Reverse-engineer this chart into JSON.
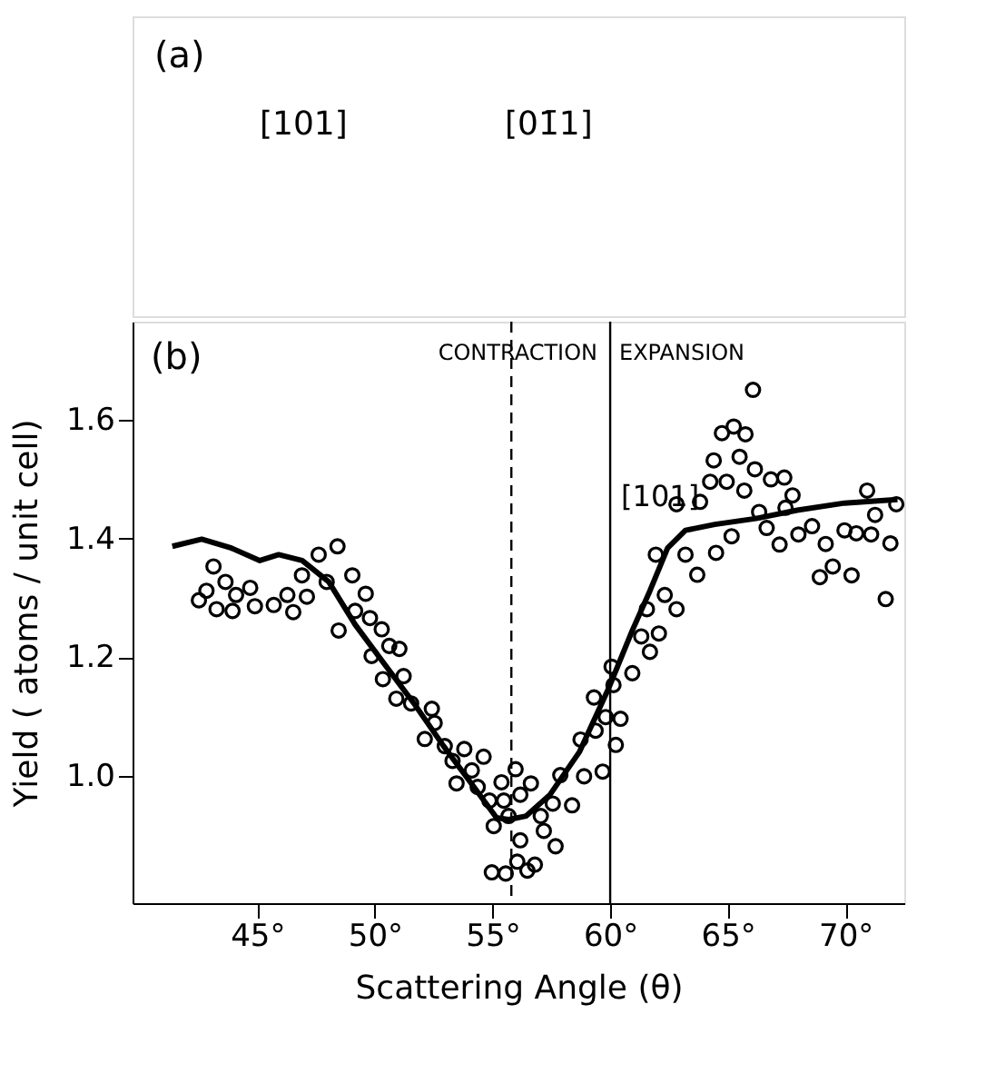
{
  "chart_data": {
    "type": "scatter",
    "xlabel": "Scattering Angle (θ)",
    "ylabel": "Yield ( atoms / unit cell)",
    "xlim": [
      39.7,
      72.5
    ],
    "ylim": [
      0.785,
      1.766
    ],
    "xticks": [
      {
        "value": 45,
        "label": "45°"
      },
      {
        "value": 50,
        "label": "50°"
      },
      {
        "value": 55,
        "label": "55°"
      },
      {
        "value": 60,
        "label": "60°"
      },
      {
        "value": 65,
        "label": "65°"
      },
      {
        "value": 70,
        "label": "70°"
      }
    ],
    "yticks": [
      {
        "value": 1.0,
        "label": "1.0"
      },
      1.2,
      1.4,
      1.6
    ],
    "grid": false,
    "ref_lines": [
      {
        "axis": "x",
        "value": 55.8,
        "line_style": "dashed",
        "color": "#000000"
      },
      {
        "axis": "x",
        "value": 60,
        "line_style": "solid",
        "color": "#000000"
      }
    ],
    "annotations": [
      "(a)",
      "[101]",
      "[01̄1]",
      "(b)",
      "CONTRACTION",
      "EXPANSION",
      {
        "text": "[101]",
        "x": 60,
        "y": 1.47
      }
    ],
    "series": [
      {
        "type": "scatter",
        "marker": "circle",
        "color": "#000000",
        "x": [
          42.52,
          42.84,
          43.14,
          43.27,
          43.65,
          43.95,
          44.1,
          44.7,
          44.9,
          45.7,
          46.28,
          46.53,
          46.9,
          47.11,
          47.61,
          47.95,
          48.41,
          48.46,
          49.04,
          49.16,
          49.61,
          49.79,
          49.86,
          50.29,
          50.34,
          50.61,
          50.91,
          51.04,
          51.22,
          51.54,
          52.12,
          52.42,
          52.54,
          52.97,
          53.3,
          53.47,
          53.8,
          54.12,
          54.37,
          54.62,
          54.87,
          55.05,
          54.97,
          55.38,
          55.48,
          55.56,
          55.98,
          56.05,
          56.18,
          55.68,
          56.18,
          56.48,
          56.63,
          56.8,
          57.05,
          57.18,
          57.56,
          57.68,
          57.88,
          58.38,
          58.74,
          58.89,
          59.31,
          59.38,
          59.68,
          59.81,
          60.06,
          60.14,
          60.24,
          60.44,
          60.94,
          61.32,
          61.56,
          61.69,
          62.07,
          61.94,
          62.32,
          62.82,
          62.82,
          63.2,
          63.7,
          63.82,
          64.4,
          64.25,
          64.5,
          64.75,
          64.95,
          65.16,
          65.25,
          65.5,
          65.7,
          65.75,
          66.07,
          66.15,
          66.33,
          66.65,
          66.83,
          67.2,
          67.4,
          67.45,
          67.75,
          68.0,
          68.58,
          68.91,
          69.16,
          69.46,
          69.96,
          70.26,
          70.46,
          70.92,
          71.09,
          71.26,
          71.71,
          71.91,
          72.16
        ],
        "values": [
          1.296,
          1.312,
          1.353,
          1.281,
          1.327,
          1.278,
          1.305,
          1.317,
          1.286,
          1.288,
          1.305,
          1.276,
          1.338,
          1.302,
          1.373,
          1.327,
          1.387,
          1.245,
          1.338,
          1.278,
          1.307,
          1.266,
          1.202,
          1.247,
          1.163,
          1.219,
          1.13,
          1.214,
          1.168,
          1.122,
          1.062,
          1.113,
          1.089,
          1.05,
          1.025,
          0.987,
          1.045,
          1.009,
          0.981,
          1.032,
          0.958,
          0.915,
          0.837,
          0.989,
          0.958,
          0.835,
          1.011,
          0.855,
          0.891,
          0.932,
          0.968,
          0.84,
          0.987,
          0.85,
          0.932,
          0.907,
          0.953,
          0.881,
          1.001,
          0.95,
          1.061,
          0.999,
          1.132,
          1.076,
          1.007,
          1.099,
          1.184,
          1.153,
          1.052,
          1.096,
          1.173,
          1.235,
          1.281,
          1.209,
          1.24,
          1.373,
          1.305,
          1.281,
          1.458,
          1.373,
          1.339,
          1.462,
          1.532,
          1.496,
          1.376,
          1.578,
          1.496,
          1.404,
          1.589,
          1.538,
          1.481,
          1.576,
          1.651,
          1.517,
          1.445,
          1.418,
          1.5,
          1.39,
          1.503,
          1.452,
          1.473,
          1.407,
          1.421,
          1.335,
          1.391,
          1.353,
          1.414,
          1.338,
          1.409,
          1.481,
          1.407,
          1.44,
          1.298,
          1.392,
          1.458
        ]
      },
      {
        "type": "line",
        "line_style": "solid",
        "color": "#000000",
        "x": [
          41.39,
          42.64,
          43.9,
          45.11,
          45.91,
          46.91,
          48.04,
          49.16,
          50.41,
          51.66,
          52.92,
          54.17,
          55.17,
          55.68,
          56.43,
          57.44,
          58.69,
          59.94,
          60.94,
          61.69,
          62.44,
          63.2,
          64.45,
          66.2,
          67.95,
          69.96,
          72.21
        ],
        "values": [
          1.387,
          1.399,
          1.384,
          1.363,
          1.373,
          1.363,
          1.327,
          1.255,
          1.188,
          1.122,
          1.05,
          0.983,
          0.929,
          0.926,
          0.932,
          0.968,
          1.04,
          1.148,
          1.245,
          1.312,
          1.384,
          1.414,
          1.424,
          1.434,
          1.448,
          1.46,
          1.466
        ]
      }
    ]
  }
}
